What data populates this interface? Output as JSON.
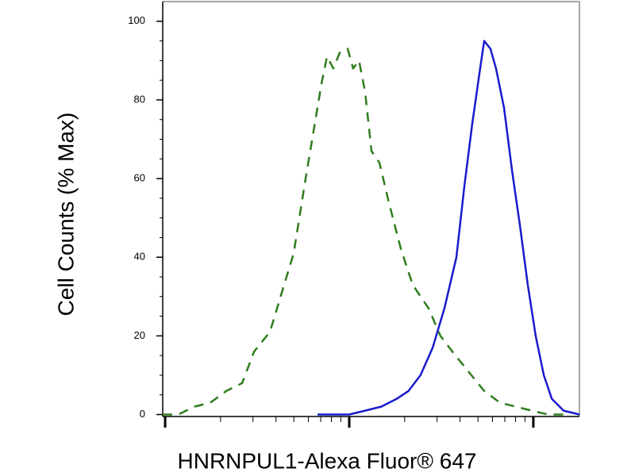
{
  "chart_data": {
    "type": "line",
    "xlabel": "HNRNPUL1-Alexa Fluor® 647",
    "ylabel": "Cell Counts (% Max)",
    "xscale": "log",
    "xlim": [
      0.97,
      178
    ],
    "xticks": [
      1,
      10,
      100
    ],
    "ylim": [
      -0.5,
      105
    ],
    "yticks": [
      0,
      20,
      40,
      60,
      80,
      100
    ],
    "series": [
      {
        "color": "#2e7d1e",
        "dashed": true,
        "x": [
          0.97,
          1.18,
          1.44,
          1.76,
          2.15,
          2.62,
          3.04,
          3.71,
          4.3,
          4.99,
          5.79,
          6.4,
          7.06,
          7.57,
          8.2,
          8.88,
          9.8,
          10.5,
          11.3,
          12.2,
          13.2,
          14.6,
          16.4,
          19.1,
          22.1,
          27.0,
          31.3,
          36.3,
          44.3,
          54.1,
          65.9,
          80.4,
          98.0,
          120,
          146
        ],
        "values": [
          0,
          0,
          2,
          3,
          6,
          8,
          16,
          21,
          31,
          41,
          60,
          72,
          84,
          91,
          88,
          92,
          93,
          88,
          90,
          82,
          67,
          64,
          54,
          42,
          33,
          27,
          20,
          16,
          11,
          6,
          3,
          2,
          1,
          0,
          0
        ]
      },
      {
        "color": "#1a1acc",
        "dashed": false,
        "x": [
          6.72,
          8.2,
          10.0,
          12.2,
          14.9,
          18.1,
          21.0,
          24.4,
          28.4,
          32.9,
          38.2,
          42.2,
          46.6,
          51.4,
          54.1,
          58.5,
          62.7,
          69.3,
          76.6,
          84.6,
          93.3,
          103,
          114,
          126,
          146,
          178
        ],
        "values": [
          0,
          0,
          0,
          1,
          2,
          4,
          6,
          10,
          17,
          27,
          40,
          58,
          74,
          88,
          95,
          93,
          88,
          78,
          62,
          48,
          33,
          20,
          10,
          4,
          1,
          0
        ]
      }
    ]
  }
}
